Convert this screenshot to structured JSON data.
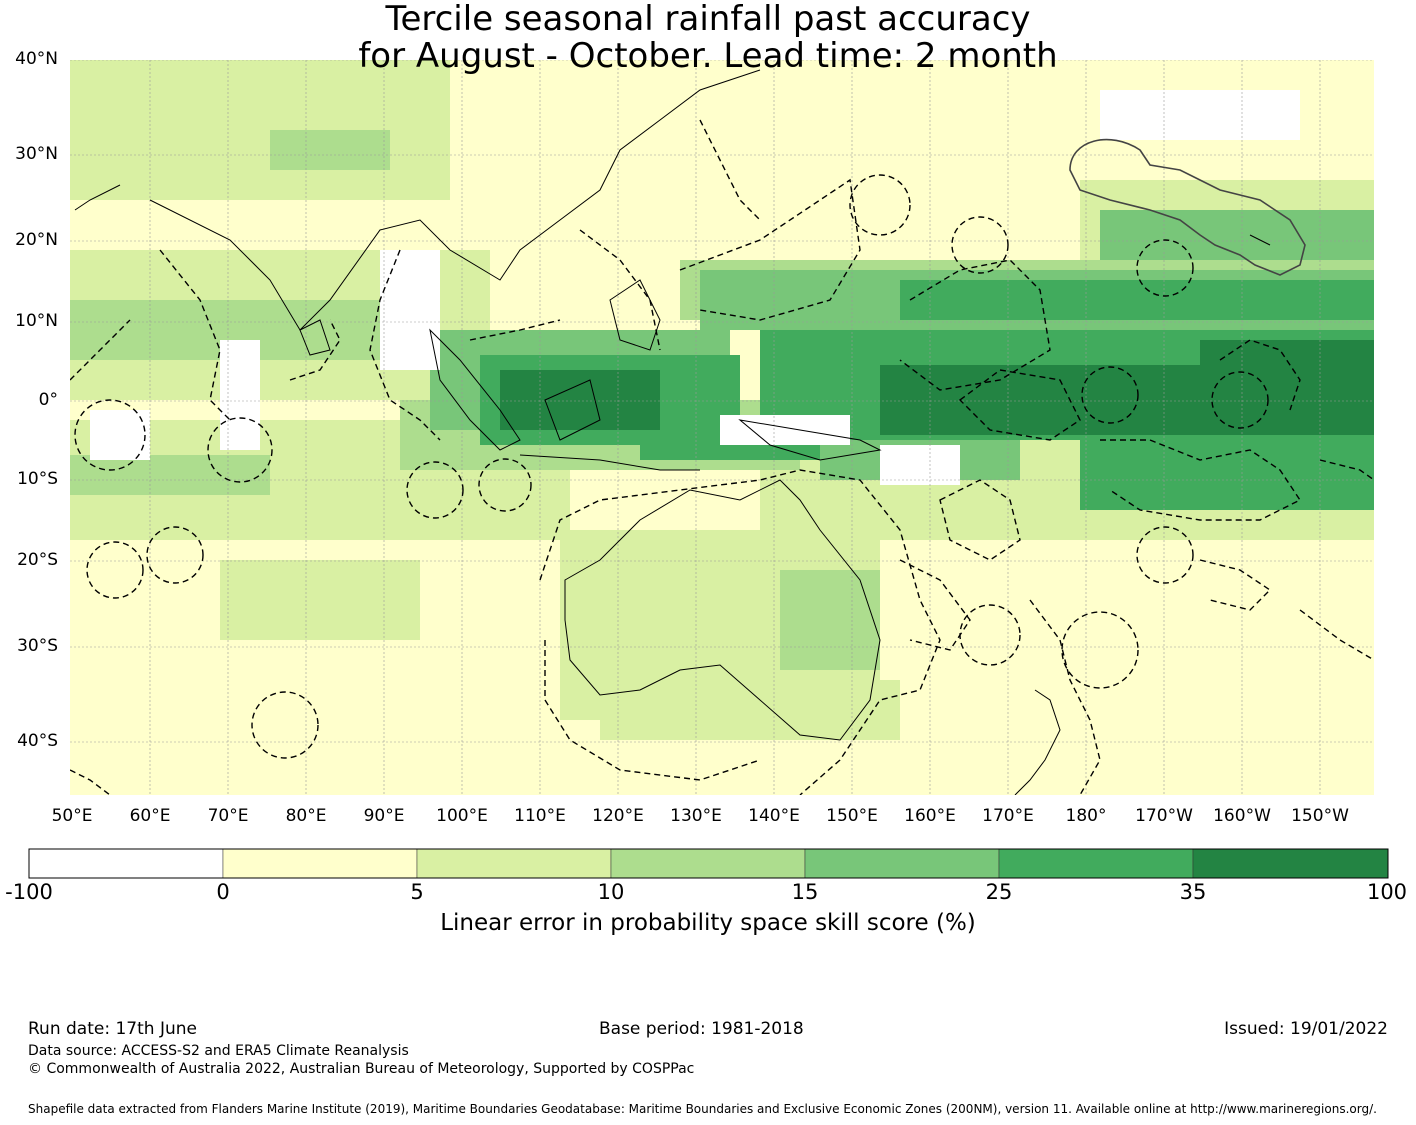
{
  "title_line1": "Tercile seasonal rainfall past accuracy",
  "title_line2": "for August - October. Lead time: 2 month",
  "lat_labels": [
    "40°N",
    "30°N",
    "20°N",
    "10°N",
    "0°",
    "10°S",
    "20°S",
    "30°S",
    "40°S"
  ],
  "lon_labels": [
    "50°E",
    "60°E",
    "70°E",
    "80°E",
    "90°E",
    "100°E",
    "110°E",
    "120°E",
    "130°E",
    "140°E",
    "150°E",
    "160°E",
    "170°E",
    "180°",
    "170°W",
    "160°W",
    "150°W"
  ],
  "legend": {
    "ticks": [
      "-100",
      "0",
      "5",
      "10",
      "15",
      "25",
      "35",
      "100"
    ],
    "colors": [
      "#ffffff",
      "#ffffcc",
      "#d9f0a3",
      "#addd8e",
      "#78c679",
      "#41ab5d",
      "#238443"
    ],
    "label": "Linear error in probability space skill score (%)"
  },
  "footer": {
    "run_date": "Run date: 17th June",
    "base_period": "Base period: 1981-2018",
    "issued": "Issued: 19/01/2022",
    "data_source": "Data source: ACCESS-S2 and ERA5 Climate Reanalysis",
    "copyright": "© Commonwealth of Australia 2022, Australian Bureau of Meteorology, Supported by COSPPac",
    "shapefile": "Shapefile data extracted from Flanders Marine Institute (2019), Maritime Boundaries Geodatabase: Maritime Boundaries and Exclusive Economic Zones (200NM), version 11. Available online at http://www.marineregions.org/."
  }
}
